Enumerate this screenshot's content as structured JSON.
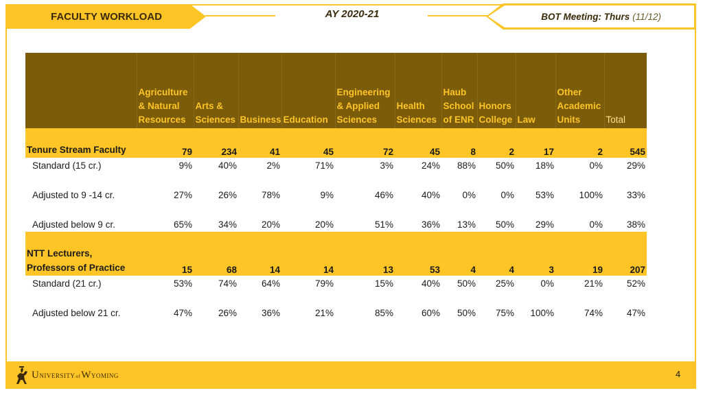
{
  "header": {
    "left_title": "FACULTY WORKLOAD",
    "center_title": "AY 2020-21",
    "right_label": "BOT Meeting: Thurs",
    "right_date": "(11/12)"
  },
  "table": {
    "columns": [
      [
        "Agriculture",
        "& Natural",
        "Resources"
      ],
      [
        "Arts &",
        "Sciences"
      ],
      [
        "Business"
      ],
      [
        "Education"
      ],
      [
        "Engineering",
        "& Applied",
        "Sciences"
      ],
      [
        "Health",
        "Sciences"
      ],
      [
        "Haub",
        "School",
        "of ENR"
      ],
      [
        "Honors",
        "College"
      ],
      [
        "Law"
      ],
      [
        "Other",
        "Academic",
        "Units"
      ],
      [
        "Total"
      ]
    ],
    "sections": [
      {
        "label": "Tenure Stream Faculty",
        "values": [
          "79",
          "234",
          "41",
          "45",
          "72",
          "45",
          "8",
          "2",
          "17",
          "2",
          "545"
        ],
        "rows": [
          {
            "label": "Standard (15 cr.)",
            "values": [
              "9%",
              "40%",
              "2%",
              "71%",
              "3%",
              "24%",
              "88%",
              "50%",
              "18%",
              "0%",
              "29%"
            ]
          },
          {
            "label": "Adjusted to 9 -14 cr.",
            "values": [
              "27%",
              "26%",
              "78%",
              "9%",
              "46%",
              "40%",
              "0%",
              "0%",
              "53%",
              "100%",
              "33%"
            ]
          },
          {
            "label": "Adjusted below 9 cr.",
            "values": [
              "65%",
              "34%",
              "20%",
              "20%",
              "51%",
              "36%",
              "13%",
              "50%",
              "29%",
              "0%",
              "38%"
            ]
          }
        ]
      },
      {
        "label": "NTT Lecturers, Professors of Practice",
        "values": [
          "15",
          "68",
          "14",
          "14",
          "13",
          "53",
          "4",
          "4",
          "3",
          "19",
          "207"
        ],
        "rows": [
          {
            "label": "Standard (21 cr.)",
            "values": [
              "53%",
              "74%",
              "64%",
              "79%",
              "15%",
              "40%",
              "50%",
              "25%",
              "0%",
              "21%",
              "52%"
            ]
          },
          {
            "label": "Adjusted below 21 cr.",
            "values": [
              "47%",
              "26%",
              "36%",
              "21%",
              "85%",
              "60%",
              "50%",
              "75%",
              "100%",
              "74%",
              "47%"
            ]
          }
        ]
      }
    ]
  },
  "footer": {
    "logo_text_1": "U",
    "logo_text_2": "NIVERSITY",
    "logo_text_3": "of",
    "logo_text_4": "W",
    "logo_text_5": "YOMING",
    "page_number": "4"
  },
  "colors": {
    "gold": "#ffc425",
    "brown": "#7a5c0a"
  }
}
